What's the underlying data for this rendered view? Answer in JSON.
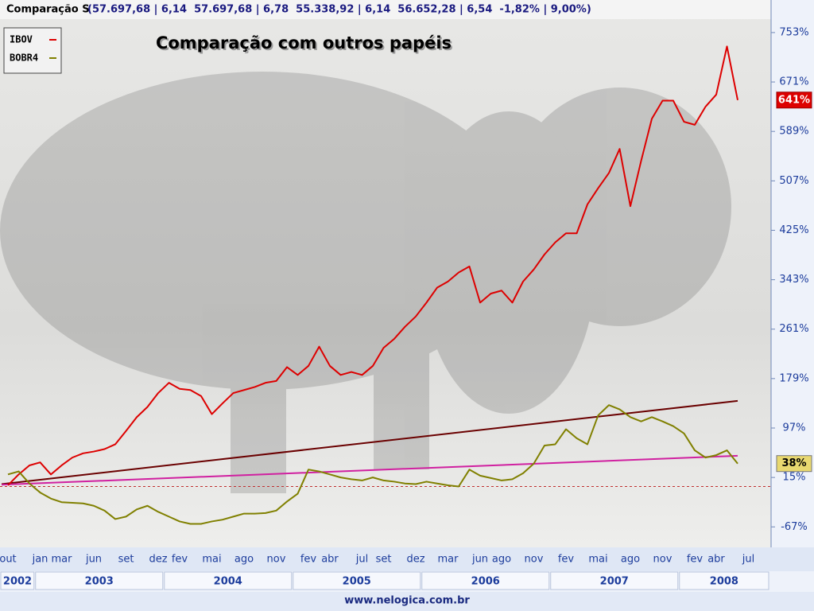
{
  "header": {
    "title": "Comparação S",
    "values": "(57.697,68 | 6,14  57.697,68 | 6,78  55.338,92 | 6,14  56.652,28 | 6,54  -1,82% | 9,00%)"
  },
  "footer": "www.nelogica.com.br",
  "chart_data": {
    "type": "line",
    "title": "Comparação com outros papéis",
    "categories": [
      "out",
      null,
      null,
      "jan",
      null,
      "mar",
      null,
      null,
      "jun",
      null,
      null,
      "set",
      null,
      null,
      "dez",
      null,
      "fev",
      null,
      null,
      "mai",
      null,
      null,
      "ago",
      null,
      null,
      "nov",
      null,
      null,
      "fev",
      null,
      "abr",
      null,
      null,
      "jul",
      null,
      "set",
      null,
      null,
      "dez",
      null,
      null,
      "mar",
      null,
      null,
      "jun",
      null,
      "ago",
      null,
      null,
      "nov",
      null,
      null,
      "fev",
      null,
      null,
      "mai",
      null,
      null,
      "ago",
      null,
      null,
      "nov",
      null,
      null,
      "fev",
      null,
      "abr",
      null,
      null,
      "jul"
    ],
    "years": [
      "2002",
      "2003",
      "2004",
      "2005",
      "2006",
      "2007",
      "2008"
    ],
    "series": [
      {
        "name": "IBOV",
        "color": "#dd0000",
        "values": [
          2,
          20,
          35,
          40,
          20,
          35,
          48,
          55,
          58,
          62,
          70,
          92,
          115,
          132,
          155,
          172,
          162,
          160,
          150,
          120,
          138,
          155,
          160,
          165,
          172,
          175,
          198,
          185,
          200,
          232,
          200,
          185,
          190,
          185,
          200,
          230,
          245,
          265,
          282,
          305,
          330,
          340,
          355,
          365,
          305,
          320,
          325,
          305,
          340,
          360,
          385,
          405,
          420,
          420,
          468,
          495,
          520,
          560,
          465,
          540,
          610,
          640,
          640,
          605,
          600,
          630,
          650,
          730,
          641,
          null
        ],
        "value_labels": [
          null,
          null,
          null,
          null,
          null,
          null,
          null,
          null,
          null,
          null,
          null,
          null,
          null,
          null,
          null,
          null,
          null,
          null,
          null,
          null,
          null,
          null,
          null,
          null,
          null,
          null,
          null,
          null,
          null,
          null,
          null,
          null,
          null,
          null,
          null,
          null,
          null,
          null,
          null,
          null,
          null,
          null,
          null,
          null,
          null,
          null,
          null,
          null,
          null,
          null,
          null,
          null,
          null,
          null,
          null,
          null,
          null,
          null,
          null,
          null,
          null,
          null,
          null,
          null,
          null,
          null,
          null,
          null,
          "641%",
          null
        ]
      },
      {
        "name": "BOBR4",
        "color": "#808000",
        "values": [
          20,
          25,
          5,
          -10,
          -20,
          -26,
          -27,
          -28,
          -32,
          -40,
          -54,
          -50,
          -38,
          -32,
          -42,
          -50,
          -58,
          -62,
          -62,
          -58,
          -55,
          -50,
          -45,
          -45,
          -44,
          -40,
          -25,
          -12,
          28,
          25,
          20,
          15,
          12,
          10,
          15,
          10,
          8,
          5,
          4,
          8,
          5,
          2,
          0,
          28,
          18,
          14,
          10,
          12,
          22,
          38,
          68,
          70,
          95,
          80,
          70,
          118,
          135,
          128,
          115,
          108,
          115,
          108,
          100,
          88,
          60,
          48,
          52,
          60,
          38,
          null
        ],
        "value_labels": [
          null,
          null,
          null,
          null,
          null,
          null,
          null,
          null,
          null,
          null,
          null,
          null,
          null,
          null,
          null,
          null,
          null,
          null,
          null,
          null,
          null,
          null,
          null,
          null,
          null,
          null,
          null,
          null,
          null,
          null,
          null,
          null,
          null,
          null,
          null,
          null,
          null,
          null,
          null,
          null,
          null,
          null,
          null,
          null,
          null,
          null,
          null,
          null,
          null,
          null,
          null,
          null,
          null,
          null,
          null,
          null,
          null,
          null,
          null,
          null,
          null,
          null,
          null,
          null,
          null,
          null,
          null,
          null,
          "38%",
          null
        ]
      }
    ],
    "trendlines": [
      {
        "color": "#6a0000",
        "values": [
          4,
          142
        ]
      },
      {
        "color": "#d020a0",
        "values": [
          3,
          51
        ]
      }
    ],
    "baseline": {
      "value": 0,
      "color": "#c03030"
    },
    "ylim": [
      -97,
      807
    ],
    "yticks": [
      {
        "value": -67,
        "label": "-67%"
      },
      {
        "value": 15,
        "label": "15%"
      },
      {
        "value": 97,
        "label": "97%"
      },
      {
        "value": 179,
        "label": "179%"
      },
      {
        "value": 261,
        "label": "261%"
      },
      {
        "value": 343,
        "label": "343%"
      },
      {
        "value": 425,
        "label": "425%"
      },
      {
        "value": 507,
        "label": "507%"
      },
      {
        "value": 589,
        "label": "589%"
      },
      {
        "value": 671,
        "label": "671%"
      },
      {
        "value": 753,
        "label": "753%"
      }
    ],
    "legend": "top-left",
    "grid": false
  }
}
